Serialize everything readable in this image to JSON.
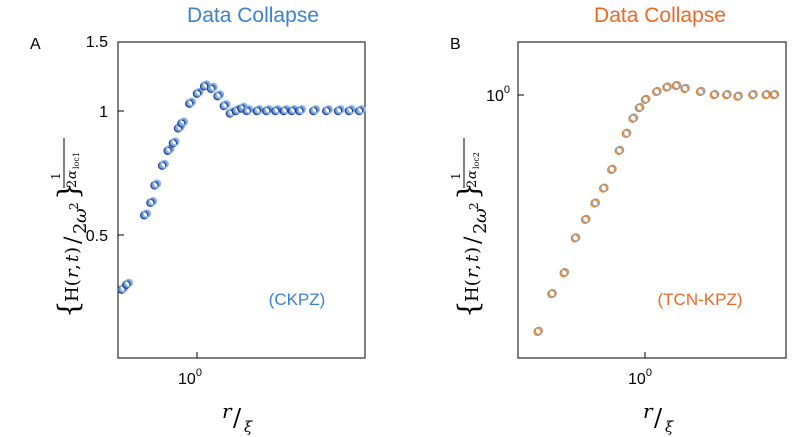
{
  "panel_a": {
    "title": "Data Collapse",
    "letter": "A",
    "tag": "(CKPZ)",
    "y_ticks": [
      "1.5",
      "1",
      "0.5"
    ],
    "x_tick": "10",
    "x_tick_exp": "0",
    "title_color": "#3a7fd8",
    "tag_color": "#3a7fd8"
  },
  "panel_b": {
    "title": "Data Collapse",
    "letter": "B",
    "tag": "(TCN-KPZ)",
    "y_tick": "10",
    "y_tick_exp": "0",
    "x_tick": "10",
    "x_tick_exp": "0",
    "title_color": "#f26522",
    "tag_color": "#f26522"
  },
  "chart_data": [
    {
      "type": "scatter",
      "title": "Data Collapse",
      "panel": "A",
      "annotation": "(CKPZ)",
      "xlabel": "r/ξ",
      "ylabel": "{H(r,t)/2ω²}^(1/2α_loc1)",
      "xscale": "log",
      "ylim": [
        0.25,
        1.5
      ],
      "yticks": [
        0.5,
        1,
        1.5
      ],
      "xticks": [
        "10^0"
      ],
      "grid": false,
      "colors": [
        "#1f3a93",
        "#5b8fd6",
        "#8ab4e8"
      ],
      "series": [
        {
          "x": [
            0.6,
            0.62,
            0.7,
            0.73,
            0.75,
            0.79,
            0.82,
            0.85,
            0.88,
            0.9,
            0.95,
            1.0,
            1.05,
            1.1,
            1.15,
            1.2,
            1.25,
            1.3,
            1.35,
            1.4,
            1.5,
            1.6,
            1.7,
            1.8,
            1.9,
            2.0,
            2.2,
            2.4,
            2.6,
            2.8,
            3.0
          ],
          "y": [
            0.28,
            0.3,
            0.58,
            0.63,
            0.7,
            0.78,
            0.84,
            0.87,
            0.93,
            0.95,
            1.03,
            1.07,
            1.1,
            1.09,
            1.06,
            1.02,
            0.99,
            1.0,
            1.01,
            1.0,
            1.0,
            1.0,
            1.0,
            1.0,
            1.0,
            1.0,
            1.0,
            1.0,
            1.0,
            1.0,
            1.0
          ]
        }
      ]
    },
    {
      "type": "scatter",
      "title": "Data Collapse",
      "panel": "B",
      "annotation": "(TCN-KPZ)",
      "xlabel": "r/ξ",
      "ylabel": "{H(r,t)/2ω²}^(1/2α_loc2)",
      "xscale": "log",
      "yscale": "log",
      "xticks": [
        "10^0"
      ],
      "yticks": [
        "10^0"
      ],
      "grid": false,
      "colors": [
        "#f07f1e",
        "#999999"
      ],
      "series": [
        {
          "x": [
            0.4,
            0.45,
            0.5,
            0.55,
            0.6,
            0.65,
            0.7,
            0.75,
            0.8,
            0.85,
            0.9,
            0.95,
            1.0,
            1.1,
            1.2,
            1.3,
            1.4,
            1.6,
            1.8,
            2.0,
            2.2,
            2.5,
            2.8,
            3.0
          ],
          "y": [
            0.22,
            0.28,
            0.32,
            0.4,
            0.45,
            0.5,
            0.55,
            0.62,
            0.7,
            0.78,
            0.86,
            0.92,
            0.97,
            1.02,
            1.05,
            1.06,
            1.04,
            1.02,
            1.0,
            1.0,
            0.99,
            1.0,
            1.0,
            1.0
          ]
        }
      ]
    }
  ]
}
